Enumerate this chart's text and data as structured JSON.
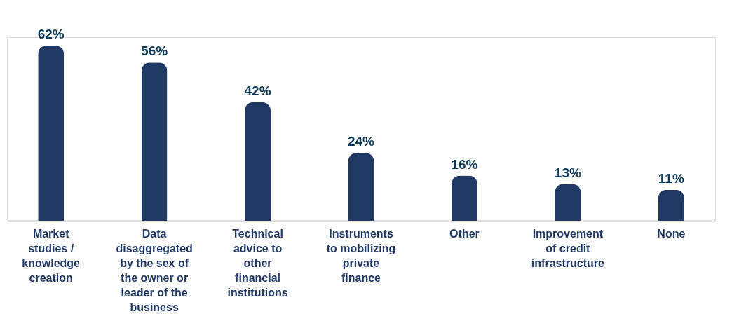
{
  "chart_data": {
    "type": "bar",
    "categories": [
      "Market studies / knowledge creation",
      "Data disaggregated by the sex of the owner or leader of the business",
      "Technical advice to other financial institutions",
      "Instruments to mobilizing private finance",
      "Other",
      "Improvement of credit infrastructure",
      "None"
    ],
    "values": [
      62,
      56,
      42,
      24,
      16,
      13,
      11
    ],
    "value_labels": [
      "62%",
      "56%",
      "42%",
      "24%",
      "16%",
      "13%",
      "11%"
    ],
    "color": "#1f3864",
    "tick_labels": "x",
    "grid": false
  }
}
